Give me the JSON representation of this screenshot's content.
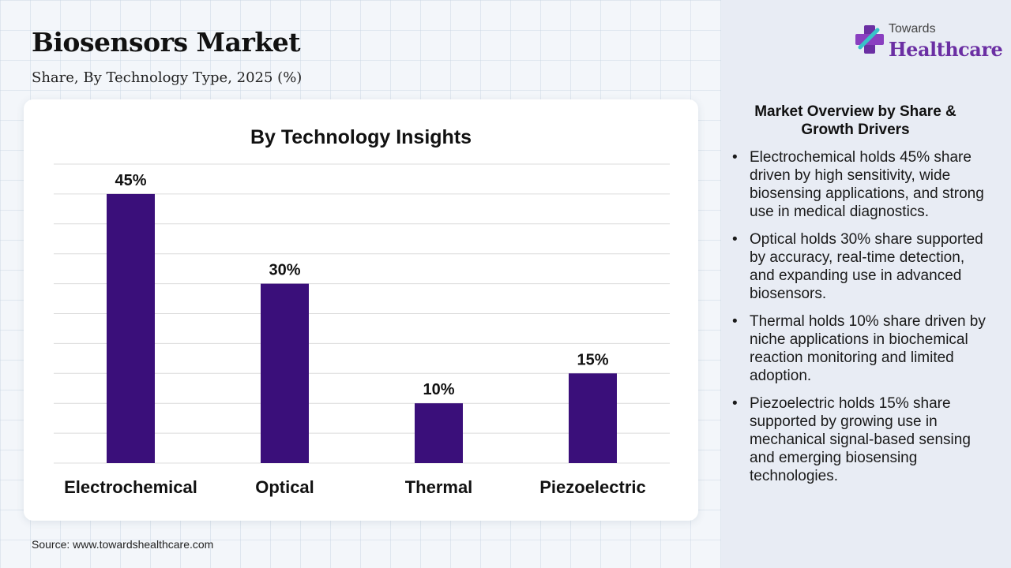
{
  "header": {
    "title": "Biosensors Market",
    "subtitle": "Share, By Technology Type, 2025 (%)"
  },
  "source": "Source: www.towardshealthcare.com",
  "logo": {
    "small_text": "Towards",
    "big_text": "Healthcare",
    "icon": "medical-cross-icon"
  },
  "overview": {
    "title": "Market Overview by Share & Growth Drivers",
    "bullets": [
      "Electrochemical holds 45% share driven by high sensitivity, wide biosensing applications, and strong use in medical diagnostics.",
      "Optical holds 30% share supported by accuracy, real-time detection, and expanding use in advanced biosensors.",
      "Thermal holds 10% share driven by niche applications in biochemical reaction monitoring and limited adoption.",
      "Piezoelectric holds 15% share supported by growing use in mechanical signal-based sensing and emerging biosensing technologies."
    ]
  },
  "colors": {
    "bar": "#3a0f7a",
    "gridline": "#dcdcdc",
    "logo_accent": "#6b2fa3"
  },
  "chart_data": {
    "type": "bar",
    "title": "By Technology Insights",
    "categories": [
      "Electrochemical",
      "Optical",
      "Thermal",
      "Piezoelectric"
    ],
    "values": [
      45,
      30,
      10,
      15
    ],
    "data_labels": [
      "45%",
      "30%",
      "10%",
      "15%"
    ],
    "xlabel": "",
    "ylabel": "",
    "ylim": [
      0,
      50
    ],
    "grid": true,
    "legend": "none"
  }
}
